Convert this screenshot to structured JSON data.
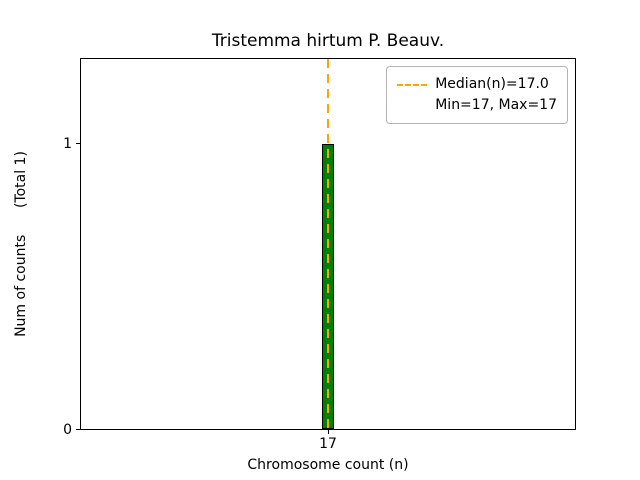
{
  "chart_data": {
    "type": "bar",
    "title": "Tristemma hirtum P. Beauv.",
    "xlabel": "Chromosome count (n)",
    "ylabel": "Num of counts      (Total 1)",
    "categories": [
      "17"
    ],
    "x": [
      17
    ],
    "values": [
      1
    ],
    "x_ticks": [
      "17"
    ],
    "y_ticks": [
      "0",
      "1"
    ],
    "xlim": [
      14.5,
      19.5
    ],
    "ylim": [
      0,
      1.3
    ],
    "bin_width": 0.13,
    "median": 17.0,
    "min": 17,
    "max": 17,
    "total": 1,
    "grid": false,
    "legend": {
      "position": "upper right",
      "entries": [
        "Median(n)=17.0",
        "Min=17, Max=17"
      ]
    },
    "colors": {
      "bar_fill": "#008000",
      "bar_edge": "#000000",
      "median_line": "#FFA500",
      "background": "#FFFFFF",
      "axes": "#000000"
    }
  }
}
